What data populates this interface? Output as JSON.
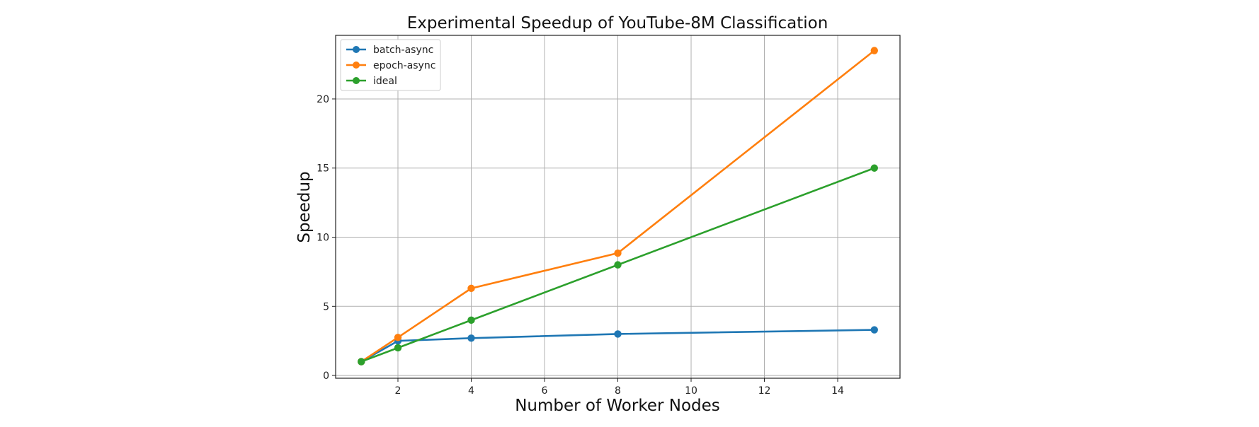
{
  "chart_data": {
    "type": "line",
    "title": "Experimental Speedup of YouTube-8M Classification",
    "xlabel": "Number of Worker Nodes",
    "ylabel": "Speedup",
    "xlim": [
      0.3,
      15.7
    ],
    "ylim": [
      -0.2,
      24.6
    ],
    "xticks": [
      2,
      4,
      6,
      8,
      10,
      12,
      14
    ],
    "yticks": [
      0,
      5,
      10,
      15,
      20
    ],
    "grid": true,
    "legend_position": "top-left",
    "x": [
      1,
      2,
      4,
      8,
      15
    ],
    "series": [
      {
        "name": "batch-async",
        "color": "#1f77b4",
        "values": [
          1.0,
          2.5,
          2.7,
          3.0,
          3.3
        ]
      },
      {
        "name": "epoch-async",
        "color": "#ff7f0e",
        "values": [
          1.0,
          2.75,
          6.3,
          8.85,
          23.5
        ]
      },
      {
        "name": "ideal",
        "color": "#2ca02c",
        "values": [
          1,
          2,
          4,
          8,
          15
        ]
      }
    ]
  }
}
